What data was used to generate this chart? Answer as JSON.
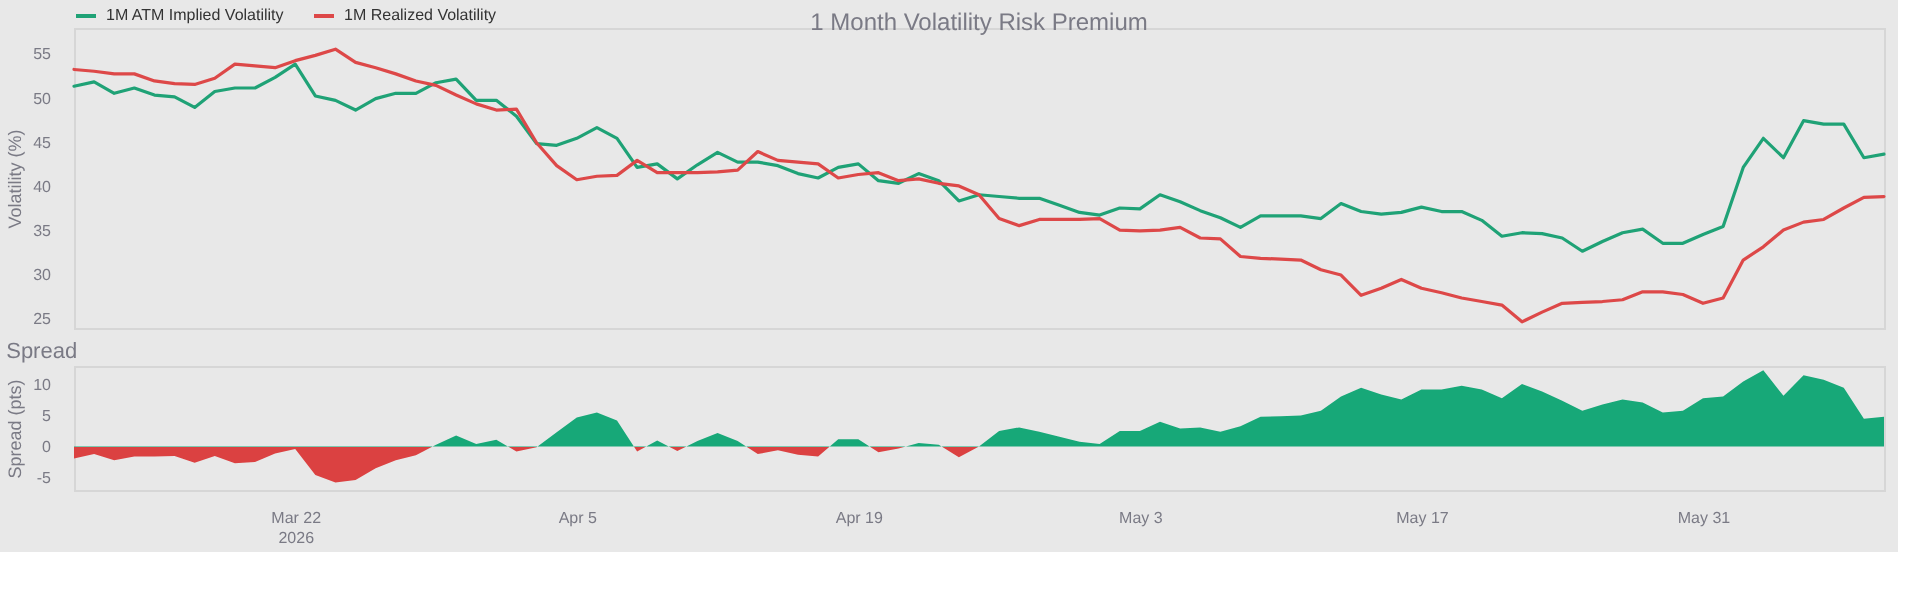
{
  "chart_data": [
    {
      "type": "line",
      "title": "1 Month Volatility Risk Premium",
      "ylabel": "Volatility (%)",
      "x": [
        "2026-03-11",
        "2026-03-12",
        "2026-03-13",
        "2026-03-14",
        "2026-03-15",
        "2026-03-16",
        "2026-03-17",
        "2026-03-18",
        "2026-03-19",
        "2026-03-20",
        "2026-03-21",
        "2026-03-22",
        "2026-03-23",
        "2026-03-24",
        "2026-03-25",
        "2026-03-26",
        "2026-03-27",
        "2026-03-28",
        "2026-03-29",
        "2026-03-30",
        "2026-03-31",
        "2026-04-01",
        "2026-04-02",
        "2026-04-03",
        "2026-04-04",
        "2026-04-05",
        "2026-04-06",
        "2026-04-07",
        "2026-04-08",
        "2026-04-09",
        "2026-04-10",
        "2026-04-11",
        "2026-04-12",
        "2026-04-13",
        "2026-04-14",
        "2026-04-15",
        "2026-04-16",
        "2026-04-17",
        "2026-04-18",
        "2026-04-19",
        "2026-04-20",
        "2026-04-21",
        "2026-04-22",
        "2026-04-23",
        "2026-04-24",
        "2026-04-25",
        "2026-04-26",
        "2026-04-27",
        "2026-04-28",
        "2026-04-29",
        "2026-04-30",
        "2026-05-01",
        "2026-05-02",
        "2026-05-03",
        "2026-05-04",
        "2026-05-05",
        "2026-05-06",
        "2026-05-07",
        "2026-05-08",
        "2026-05-09",
        "2026-05-10",
        "2026-05-11",
        "2026-05-12",
        "2026-05-13",
        "2026-05-14",
        "2026-05-15",
        "2026-05-16",
        "2026-05-17",
        "2026-05-18",
        "2026-05-19",
        "2026-05-20",
        "2026-05-21",
        "2026-05-22",
        "2026-05-23",
        "2026-05-24",
        "2026-05-25",
        "2026-05-26",
        "2026-05-27",
        "2026-05-28",
        "2026-05-29",
        "2026-05-30",
        "2026-05-31",
        "2026-06-01",
        "2026-06-02",
        "2026-06-03",
        "2026-06-04",
        "2026-06-05",
        "2026-06-06",
        "2026-06-07",
        "2026-06-08",
        "2026-06-09"
      ],
      "series": [
        {
          "name": "1M ATM Implied Volatility",
          "color": "#1fa276",
          "values": [
            51.4,
            51.9,
            50.6,
            51.2,
            50.4,
            50.2,
            49.0,
            50.8,
            51.2,
            51.2,
            52.4,
            53.9,
            50.3,
            49.8,
            48.7,
            50.0,
            50.6,
            50.6,
            51.8,
            52.2,
            49.8,
            49.8,
            48.0,
            44.9,
            44.7,
            45.5,
            46.7,
            45.5,
            42.2,
            42.6,
            40.9,
            42.5,
            43.9,
            42.8,
            42.8,
            42.4,
            41.5,
            41.0,
            42.2,
            42.6,
            40.7,
            40.4,
            41.5,
            40.7,
            38.4,
            39.1,
            38.9,
            38.7,
            38.7,
            37.9,
            37.1,
            36.8,
            37.6,
            37.5,
            39.1,
            38.3,
            37.3,
            36.5,
            35.4,
            36.7,
            36.7,
            36.7,
            36.4,
            38.1,
            37.2,
            36.9,
            37.1,
            37.7,
            37.2,
            37.2,
            36.2,
            34.4,
            34.8,
            34.7,
            34.2,
            32.7,
            33.8,
            34.8,
            35.2,
            33.6,
            33.6,
            34.6,
            35.5,
            42.2,
            45.5,
            43.3,
            47.5,
            47.1,
            47.1,
            43.3,
            43.7
          ]
        },
        {
          "name": "1M Realized Volatility",
          "color": "#dd4848",
          "values": [
            53.3,
            53.1,
            52.8,
            52.8,
            52.0,
            51.7,
            51.6,
            52.3,
            53.9,
            53.7,
            53.5,
            54.3,
            54.9,
            55.6,
            54.1,
            53.5,
            52.8,
            52.0,
            51.5,
            50.4,
            49.4,
            48.7,
            48.8,
            45.0,
            42.4,
            40.8,
            41.2,
            41.3,
            43.0,
            41.6,
            41.6,
            41.6,
            41.7,
            41.9,
            44.0,
            43.0,
            42.8,
            42.6,
            41.0,
            41.4,
            41.6,
            40.7,
            40.9,
            40.4,
            40.1,
            39.1,
            36.4,
            35.6,
            36.3,
            36.3,
            36.3,
            36.4,
            35.1,
            35.0,
            35.1,
            35.4,
            34.2,
            34.1,
            32.1,
            31.9,
            31.8,
            31.7,
            30.6,
            30.0,
            27.7,
            28.5,
            29.5,
            28.5,
            28.0,
            27.4,
            27.0,
            26.6,
            24.7,
            25.8,
            26.8,
            26.9,
            27.0,
            27.2,
            28.1,
            28.1,
            27.8,
            26.8,
            27.4,
            31.7,
            33.2,
            35.1,
            36.0,
            36.3,
            37.6,
            38.8,
            38.9
          ]
        }
      ],
      "xlim": [
        "2026-03-11",
        "2026-06-09"
      ],
      "ylim": [
        24,
        58
      ],
      "yticks": [
        25,
        30,
        35,
        40,
        45,
        50,
        55
      ],
      "tick_labels": "y",
      "legend": "top left",
      "grid": false
    },
    {
      "type": "area",
      "title": "Spread",
      "ylabel": "Spread (pts)",
      "x": [
        "2026-03-11",
        "2026-03-12",
        "2026-03-13",
        "2026-03-14",
        "2026-03-15",
        "2026-03-16",
        "2026-03-17",
        "2026-03-18",
        "2026-03-19",
        "2026-03-20",
        "2026-03-21",
        "2026-03-22",
        "2026-03-23",
        "2026-03-24",
        "2026-03-25",
        "2026-03-26",
        "2026-03-27",
        "2026-03-28",
        "2026-03-29",
        "2026-03-30",
        "2026-03-31",
        "2026-04-01",
        "2026-04-02",
        "2026-04-03",
        "2026-04-04",
        "2026-04-05",
        "2026-04-06",
        "2026-04-07",
        "2026-04-08",
        "2026-04-09",
        "2026-04-10",
        "2026-04-11",
        "2026-04-12",
        "2026-04-13",
        "2026-04-14",
        "2026-04-15",
        "2026-04-16",
        "2026-04-17",
        "2026-04-18",
        "2026-04-19",
        "2026-04-20",
        "2026-04-21",
        "2026-04-22",
        "2026-04-23",
        "2026-04-24",
        "2026-04-25",
        "2026-04-26",
        "2026-04-27",
        "2026-04-28",
        "2026-04-29",
        "2026-04-30",
        "2026-05-01",
        "2026-05-02",
        "2026-05-03",
        "2026-05-04",
        "2026-05-05",
        "2026-05-06",
        "2026-05-07",
        "2026-05-08",
        "2026-05-09",
        "2026-05-10",
        "2026-05-11",
        "2026-05-12",
        "2026-05-13",
        "2026-05-14",
        "2026-05-15",
        "2026-05-16",
        "2026-05-17",
        "2026-05-18",
        "2026-05-19",
        "2026-05-20",
        "2026-05-21",
        "2026-05-22",
        "2026-05-23",
        "2026-05-24",
        "2026-05-25",
        "2026-05-26",
        "2026-05-27",
        "2026-05-28",
        "2026-05-29",
        "2026-05-30",
        "2026-05-31",
        "2026-06-01",
        "2026-06-02",
        "2026-06-03",
        "2026-06-04",
        "2026-06-05",
        "2026-06-06",
        "2026-06-07",
        "2026-06-08",
        "2026-06-09"
      ],
      "series": [
        {
          "colors": [
            "#db4141",
            "#db4141",
            "#db4141",
            "#db4141",
            "#db4141",
            "#db4141",
            "#db4141",
            "#db4141",
            "#db4141",
            "#db4141",
            "#db4141",
            "#db4141",
            "#db4141",
            "#db4141",
            "#db4141",
            "#db4141",
            "#db4141",
            "#db4141",
            "#17a878",
            "#17a878",
            "#17a878",
            "#17a878",
            "#db4141",
            "#db4141",
            "#17a878",
            "#17a878",
            "#17a878",
            "#17a878",
            "#db4141",
            "#17a878",
            "#db4141",
            "#17a878",
            "#17a878",
            "#17a878",
            "#db4141",
            "#db4141",
            "#db4141",
            "#db4141",
            "#17a878",
            "#17a878",
            "#db4141",
            "#db4141",
            "#17a878",
            "#17a878",
            "#db4141",
            "#17a878",
            "#17a878",
            "#17a878",
            "#17a878",
            "#17a878",
            "#17a878",
            "#17a878",
            "#17a878",
            "#17a878",
            "#17a878",
            "#17a878",
            "#17a878",
            "#17a878",
            "#17a878",
            "#17a878",
            "#17a878",
            "#17a878",
            "#17a878",
            "#17a878",
            "#17a878",
            "#17a878",
            "#17a878",
            "#17a878",
            "#17a878",
            "#17a878",
            "#17a878",
            "#17a878",
            "#17a878",
            "#17a878",
            "#17a878",
            "#17a878",
            "#17a878",
            "#17a878",
            "#17a878",
            "#17a878",
            "#17a878",
            "#17a878",
            "#17a878",
            "#17a878",
            "#17a878",
            "#17a878",
            "#17a878",
            "#17a878",
            "#17a878",
            "#17a878",
            "#17a878"
          ],
          "values": [
            -1.9,
            -1.2,
            -2.2,
            -1.6,
            -1.6,
            -1.5,
            -2.6,
            -1.5,
            -2.7,
            -2.5,
            -1.1,
            -0.4,
            -4.6,
            -5.8,
            -5.4,
            -3.5,
            -2.2,
            -1.4,
            0.3,
            1.8,
            0.4,
            1.1,
            -0.8,
            -0.1,
            2.3,
            4.7,
            5.5,
            4.2,
            -0.8,
            1.0,
            -0.7,
            0.9,
            2.2,
            0.9,
            -1.2,
            -0.6,
            -1.3,
            -1.6,
            1.2,
            1.2,
            -0.9,
            -0.3,
            0.6,
            0.3,
            -1.7,
            0.0,
            2.5,
            3.1,
            2.4,
            1.6,
            0.8,
            0.4,
            2.5,
            2.5,
            4.0,
            2.9,
            3.1,
            2.4,
            3.3,
            4.8,
            4.9,
            5.0,
            5.8,
            8.1,
            9.5,
            8.4,
            7.6,
            9.2,
            9.2,
            9.8,
            9.2,
            7.8,
            10.1,
            8.9,
            7.4,
            5.8,
            6.8,
            7.6,
            7.1,
            5.5,
            5.8,
            7.8,
            8.1,
            10.5,
            12.3,
            8.2,
            11.5,
            10.8,
            9.5,
            4.5,
            4.8
          ]
        }
      ],
      "xlim": [
        "2026-03-11",
        "2026-06-09"
      ],
      "xticks": [
        {
          "value": "2026-03-22",
          "label": "Mar 22\n2026"
        },
        {
          "value": "2026-04-05",
          "label": "Apr 5"
        },
        {
          "value": "2026-04-19",
          "label": "Apr 19"
        },
        {
          "value": "2026-05-03",
          "label": "May 3"
        },
        {
          "value": "2026-05-17",
          "label": "May 17"
        },
        {
          "value": "2026-05-31",
          "label": "May 31"
        }
      ],
      "ylim": [
        -7,
        13
      ],
      "yticks": [
        -5,
        0,
        5,
        10
      ],
      "grid": false
    }
  ]
}
